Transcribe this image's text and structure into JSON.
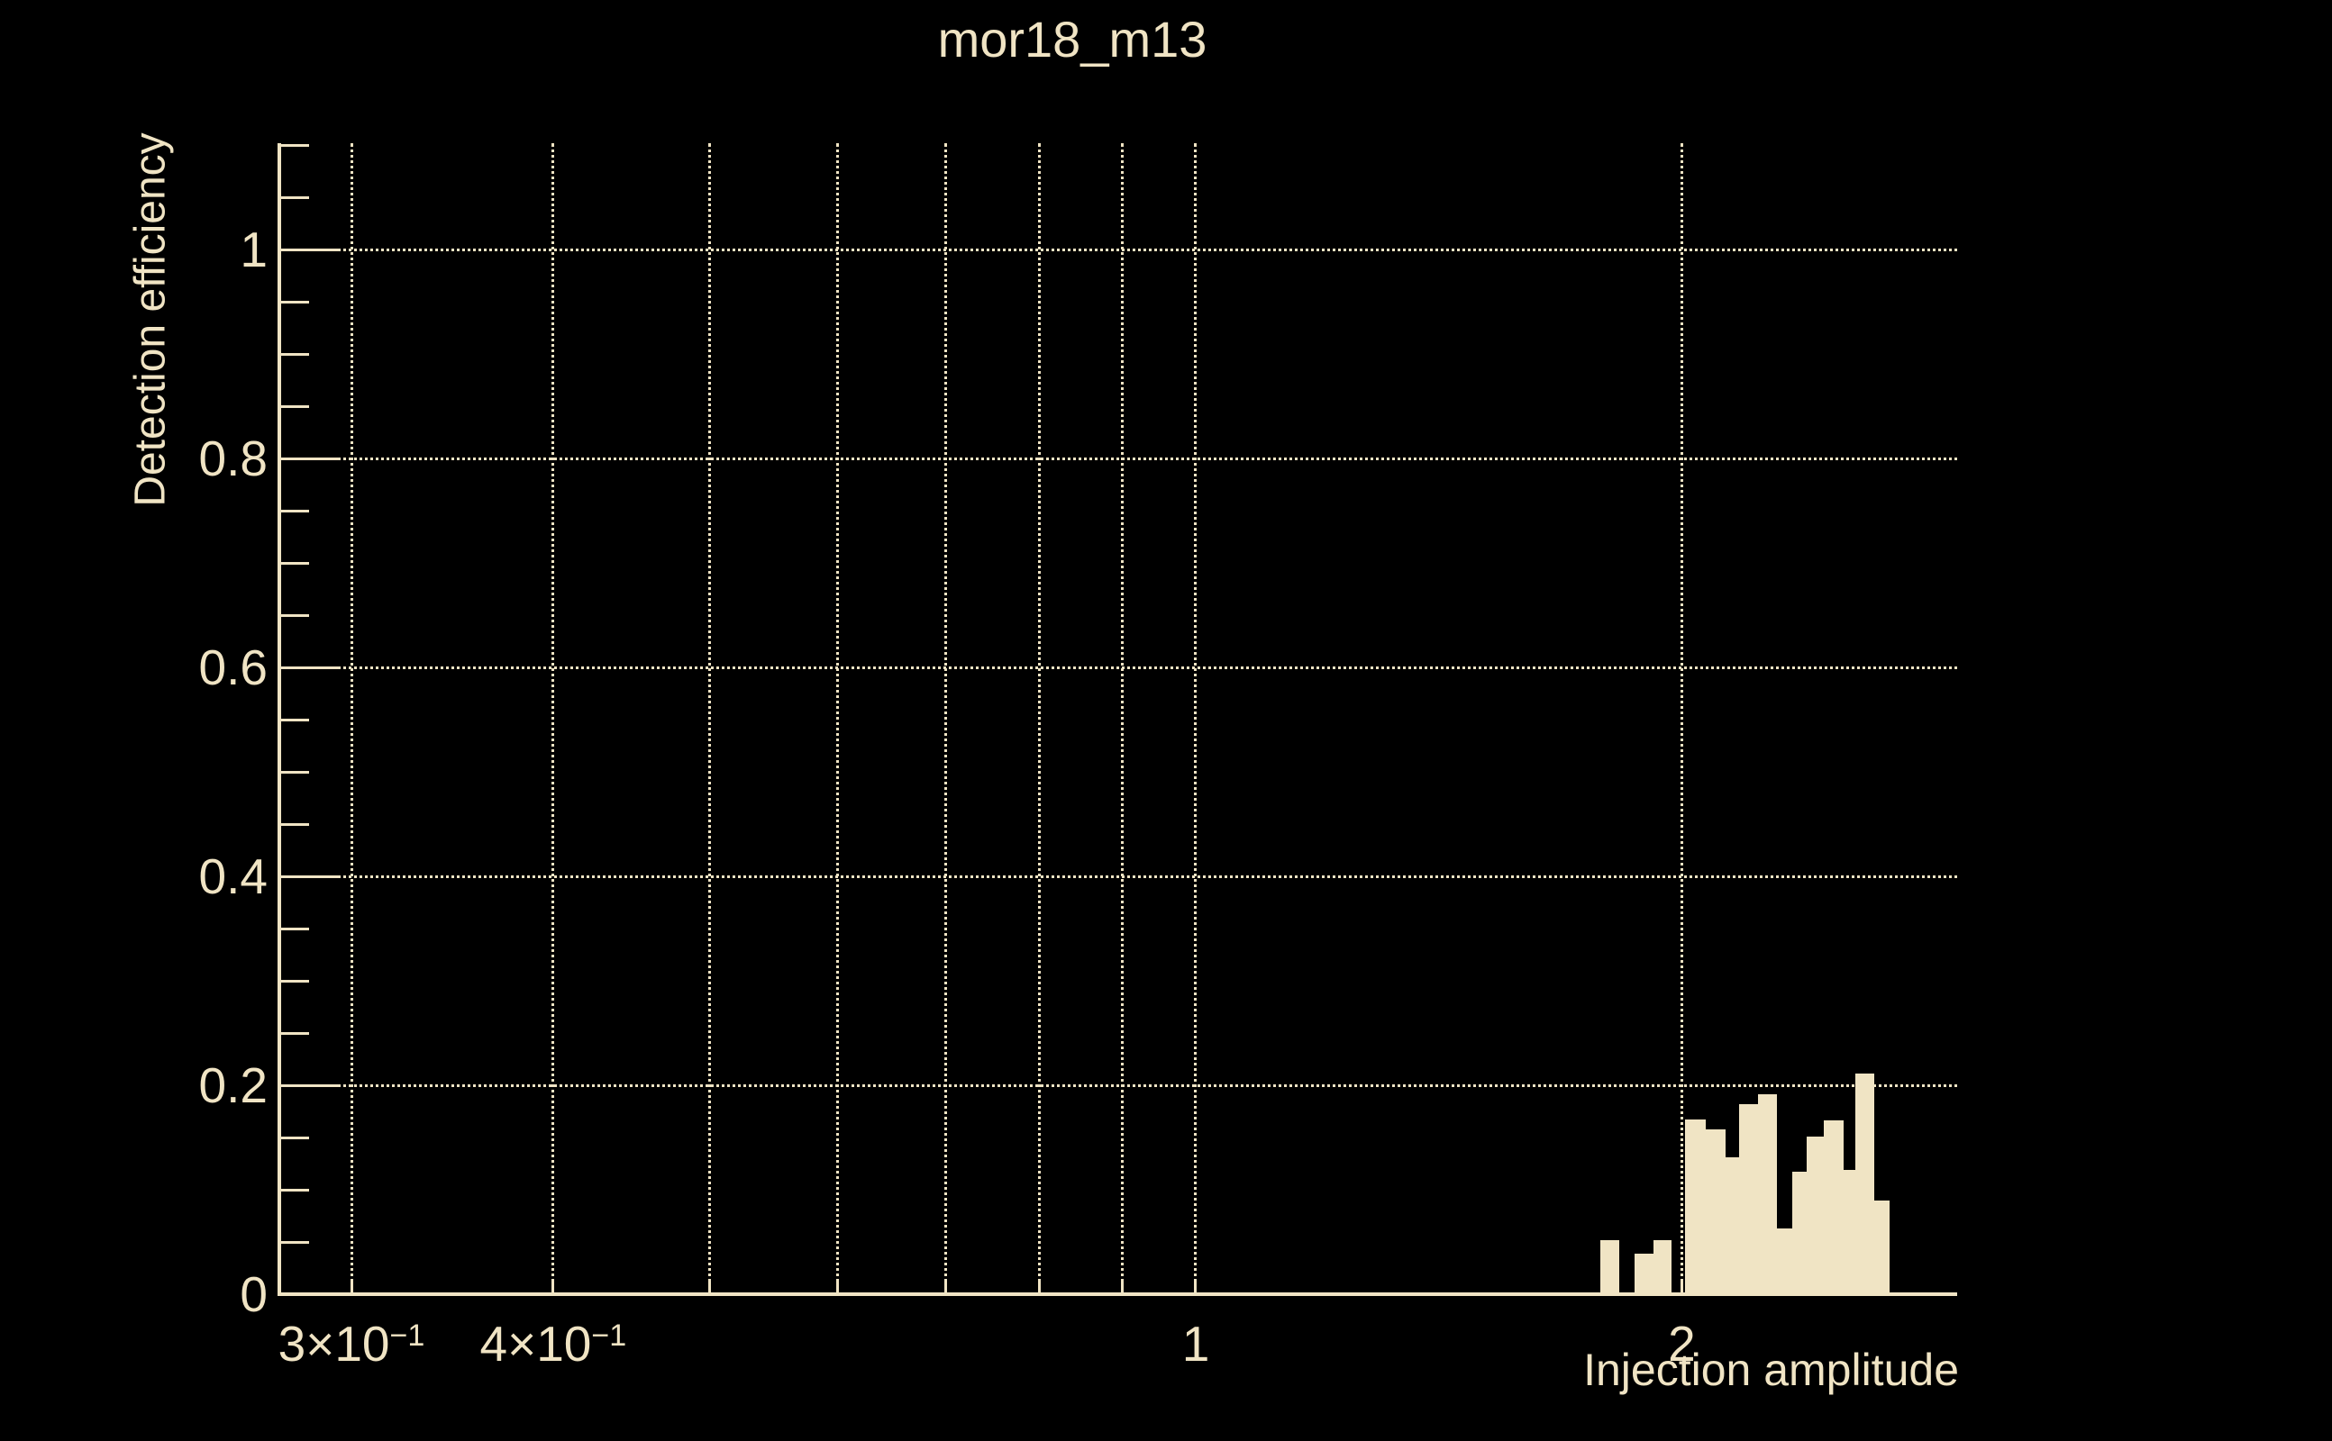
{
  "window": {
    "background_color": "#000000",
    "foreground_color": "#F0E4C4"
  },
  "chart_data": {
    "type": "bar",
    "subtype": "histogram",
    "title": "mor18_m13",
    "xlabel": "Injection amplitude",
    "ylabel": "Detection efficiency",
    "x_scale": "log",
    "xlim": [
      0.3,
      2.96
    ],
    "ylim": [
      0,
      1.1
    ],
    "grid": true,
    "grid_style": "dotted",
    "y_ticks": [
      {
        "v": 0.0,
        "label": "0"
      },
      {
        "v": 0.2,
        "label": "0.2"
      },
      {
        "v": 0.4,
        "label": "0.4"
      },
      {
        "v": 0.6,
        "label": "0.6"
      },
      {
        "v": 0.8,
        "label": "0.8"
      },
      {
        "v": 1.0,
        "label": "1"
      }
    ],
    "y_minor_tick_step": 0.05,
    "x_ticks": [
      {
        "v": 0.3,
        "base": "3×10",
        "sup": "−1"
      },
      {
        "v": 0.4,
        "base": "4×10",
        "sup": "−1"
      },
      {
        "v": 0.5
      },
      {
        "v": 0.6
      },
      {
        "v": 0.7
      },
      {
        "v": 0.8
      },
      {
        "v": 0.9
      },
      {
        "v": 1.0,
        "base": "1"
      },
      {
        "v": 2.0,
        "base": "2"
      }
    ],
    "bins": [
      {
        "x1": 1.78,
        "x2": 1.83,
        "h": 0.052
      },
      {
        "x1": 1.87,
        "x2": 1.92,
        "h": 0.039
      },
      {
        "x1": 1.92,
        "x2": 1.97,
        "h": 0.052
      },
      {
        "x1": 2.01,
        "x2": 2.07,
        "h": 0.167
      },
      {
        "x1": 2.07,
        "x2": 2.13,
        "h": 0.158
      },
      {
        "x1": 2.13,
        "x2": 2.17,
        "h": 0.131
      },
      {
        "x1": 2.17,
        "x2": 2.23,
        "h": 0.182
      },
      {
        "x1": 2.23,
        "x2": 2.29,
        "h": 0.191
      },
      {
        "x1": 2.29,
        "x2": 2.34,
        "h": 0.063
      },
      {
        "x1": 2.34,
        "x2": 2.39,
        "h": 0.117
      },
      {
        "x1": 2.39,
        "x2": 2.45,
        "h": 0.151
      },
      {
        "x1": 2.45,
        "x2": 2.52,
        "h": 0.166
      },
      {
        "x1": 2.52,
        "x2": 2.56,
        "h": 0.119
      },
      {
        "x1": 2.56,
        "x2": 2.63,
        "h": 0.211
      },
      {
        "x1": 2.63,
        "x2": 2.69,
        "h": 0.09
      }
    ]
  }
}
